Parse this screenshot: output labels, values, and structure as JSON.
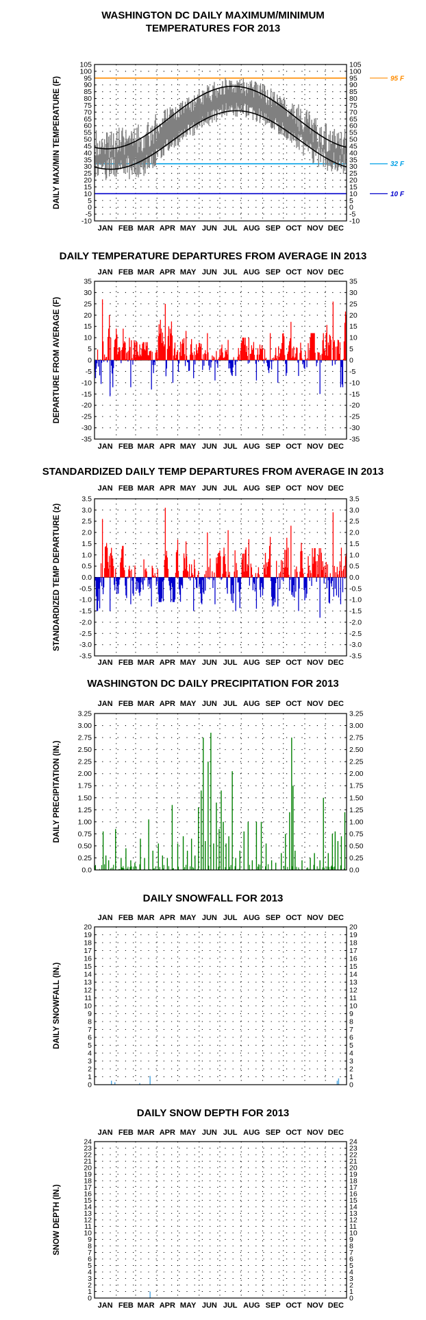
{
  "chart_data": [
    {
      "id": "temps",
      "type": "line",
      "title": "WASHINGTON DC DAILY MAXIMUM/MINIMUM",
      "title2": "TEMPERATURES FOR 2013",
      "ylabel": "DAILY MAX/MIN TEMPERATURE (F)",
      "months": [
        "JAN",
        "FEB",
        "MAR",
        "APR",
        "MAY",
        "JUN",
        "JUL",
        "AUG",
        "SEP",
        "OCT",
        "NOV",
        "DEC"
      ],
      "months_position": "bottom",
      "ylim": [
        -10,
        105
      ],
      "yticks": [
        -10,
        -5,
        0,
        5,
        10,
        15,
        20,
        25,
        30,
        35,
        40,
        45,
        50,
        55,
        60,
        65,
        70,
        75,
        80,
        85,
        90,
        95,
        100,
        105
      ],
      "grid": "dotted",
      "reference_lines": [
        {
          "value": 95,
          "label": "95 F",
          "color": "#ff8c00"
        },
        {
          "value": 32,
          "label": "32 F",
          "color": "#00a0e6"
        },
        {
          "value": 10,
          "label": "10 F",
          "color": "#0000cc"
        }
      ],
      "series": [
        {
          "kind": "normal_high",
          "color": "#000000",
          "min": 43,
          "max": 89,
          "peak_day": 200
        },
        {
          "kind": "normal_low",
          "color": "#000000",
          "min": 28,
          "max": 71,
          "peak_day": 205
        },
        {
          "kind": "observed_max_min",
          "color": "#808080",
          "monthly_max": [
            46,
            49,
            51,
            68,
            76,
            84,
            90,
            87,
            80,
            70,
            56,
            48
          ],
          "monthly_min": [
            28,
            29,
            32,
            46,
            56,
            66,
            73,
            70,
            62,
            51,
            37,
            31
          ]
        }
      ]
    },
    {
      "id": "departures",
      "type": "bar",
      "title": "DAILY TEMPERATURE DEPARTURES FROM AVERAGE IN 2013",
      "ylabel": "DEPARTURE FROM AVERAGE (F)",
      "months": [
        "JAN",
        "FEB",
        "MAR",
        "APR",
        "MAY",
        "JUN",
        "JUL",
        "AUG",
        "SEP",
        "OCT",
        "NOV",
        "DEC"
      ],
      "months_position": "top_and_bottom",
      "ylim": [
        -35,
        35
      ],
      "yticks": [
        -35,
        -30,
        -25,
        -20,
        -15,
        -10,
        -5,
        0,
        5,
        10,
        15,
        20,
        25,
        30,
        35
      ],
      "grid": "dotted",
      "positive_color": "#ff0000",
      "negative_color": "#0000cc",
      "monthly_mean_departure": [
        1.5,
        -1.0,
        -3.0,
        2.5,
        1.0,
        2.0,
        3.0,
        0.5,
        1.0,
        4.0,
        -2.5,
        1.5
      ],
      "monthly_peak_warm": [
        27,
        14,
        8,
        25,
        13,
        12,
        9,
        10,
        12,
        17,
        12,
        26
      ],
      "monthly_peak_cold": [
        -16,
        -12,
        -13,
        -10,
        -8,
        -9,
        -7,
        -9,
        -10,
        -7,
        -15,
        -12
      ]
    },
    {
      "id": "standardized",
      "type": "bar",
      "title": "STANDARDIZED DAILY TEMP DEPARTURES FROM AVERAGE IN 2013",
      "ylabel": "STANDARDIZED TEMP DEPARTURE (z)",
      "months": [
        "JAN",
        "FEB",
        "MAR",
        "APR",
        "MAY",
        "JUN",
        "JUL",
        "AUG",
        "SEP",
        "OCT",
        "NOV",
        "DEC"
      ],
      "months_position": "top_and_bottom",
      "ylim": [
        -3.5,
        3.5
      ],
      "yticks": [
        "-3.5",
        "-3.0",
        "-2.5",
        "-2.0",
        "-1.5",
        "-1.0",
        "-0.5",
        "0.0",
        "0.5",
        "1.0",
        "1.5",
        "2.0",
        "2.5",
        "3.0",
        "3.5"
      ],
      "grid": "dotted",
      "positive_color": "#ff0000",
      "negative_color": "#0000cc",
      "monthly_peak_warm": [
        2.6,
        1.4,
        0.8,
        3.1,
        1.6,
        2.0,
        2.1,
        1.7,
        1.8,
        2.3,
        1.3,
        2.9
      ],
      "monthly_peak_cold": [
        -1.5,
        -1.2,
        -1.3,
        -1.1,
        -1.5,
        -1.2,
        -1.5,
        -1.4,
        -1.3,
        -1.5,
        -1.8,
        -1.2
      ]
    },
    {
      "id": "precip",
      "type": "bar",
      "title": "WASHINGTON DC DAILY PRECIPITATION FOR 2013",
      "ylabel": "DAILY PRECIPITATION (IN.)",
      "months": [
        "JAN",
        "FEB",
        "MAR",
        "APR",
        "MAY",
        "JUN",
        "JUL",
        "AUG",
        "SEP",
        "OCT",
        "NOV",
        "DEC"
      ],
      "months_position": "top",
      "ylim": [
        0,
        3.25
      ],
      "yticks": [
        "0.0",
        "0.25",
        "0.50",
        "0.75",
        "1.00",
        "1.25",
        "1.50",
        "1.75",
        "2.00",
        "2.25",
        "2.50",
        "2.75",
        "3.00",
        "3.25"
      ],
      "grid": "dotted",
      "color": "#008000",
      "events": [
        {
          "day": 12,
          "value": 0.8
        },
        {
          "day": 16,
          "value": 0.3
        },
        {
          "day": 20,
          "value": 0.2
        },
        {
          "day": 30,
          "value": 0.85
        },
        {
          "day": 38,
          "value": 0.25
        },
        {
          "day": 45,
          "value": 0.45
        },
        {
          "day": 52,
          "value": 0.2
        },
        {
          "day": 58,
          "value": 0.15
        },
        {
          "day": 66,
          "value": 0.65
        },
        {
          "day": 72,
          "value": 0.25
        },
        {
          "day": 78,
          "value": 1.05
        },
        {
          "day": 84,
          "value": 0.4
        },
        {
          "day": 92,
          "value": 0.55
        },
        {
          "day": 98,
          "value": 0.3
        },
        {
          "day": 105,
          "value": 0.25
        },
        {
          "day": 112,
          "value": 1.35
        },
        {
          "day": 120,
          "value": 0.55
        },
        {
          "day": 128,
          "value": 0.7
        },
        {
          "day": 134,
          "value": 0.4
        },
        {
          "day": 140,
          "value": 0.65
        },
        {
          "day": 145,
          "value": 0.3
        },
        {
          "day": 150,
          "value": 1.3
        },
        {
          "day": 154,
          "value": 1.65
        },
        {
          "day": 157,
          "value": 2.75
        },
        {
          "day": 160,
          "value": 0.6
        },
        {
          "day": 164,
          "value": 2.25
        },
        {
          "day": 168,
          "value": 2.85
        },
        {
          "day": 172,
          "value": 0.55
        },
        {
          "day": 176,
          "value": 1.4
        },
        {
          "day": 180,
          "value": 0.85
        },
        {
          "day": 183,
          "value": 1.65
        },
        {
          "day": 186,
          "value": 1.0
        },
        {
          "day": 190,
          "value": 0.55
        },
        {
          "day": 194,
          "value": 0.7
        },
        {
          "day": 199,
          "value": 2.05
        },
        {
          "day": 204,
          "value": 0.25
        },
        {
          "day": 210,
          "value": 0.4
        },
        {
          "day": 216,
          "value": 0.8
        },
        {
          "day": 222,
          "value": 1.0
        },
        {
          "day": 228,
          "value": 0.2
        },
        {
          "day": 234,
          "value": 1.0
        },
        {
          "day": 241,
          "value": 1.0
        },
        {
          "day": 248,
          "value": 0.55
        },
        {
          "day": 256,
          "value": 0.2
        },
        {
          "day": 262,
          "value": 0.15
        },
        {
          "day": 270,
          "value": 0.35
        },
        {
          "day": 276,
          "value": 0.75
        },
        {
          "day": 282,
          "value": 1.2
        },
        {
          "day": 285,
          "value": 2.75
        },
        {
          "day": 287,
          "value": 1.75
        },
        {
          "day": 290,
          "value": 0.4
        },
        {
          "day": 300,
          "value": 0.2
        },
        {
          "day": 312,
          "value": 0.25
        },
        {
          "day": 318,
          "value": 0.35
        },
        {
          "day": 326,
          "value": 0.2
        },
        {
          "day": 331,
          "value": 1.5
        },
        {
          "day": 338,
          "value": 0.35
        },
        {
          "day": 344,
          "value": 0.75
        },
        {
          "day": 348,
          "value": 0.8
        },
        {
          "day": 352,
          "value": 0.6
        },
        {
          "day": 357,
          "value": 0.7
        },
        {
          "day": 362,
          "value": 1.2
        }
      ]
    },
    {
      "id": "snowfall",
      "type": "bar",
      "title": "DAILY SNOWFALL FOR 2013",
      "ylabel": "DAILY SNOWFALL (IN.)",
      "months": [
        "JAN",
        "FEB",
        "MAR",
        "APR",
        "MAY",
        "JUN",
        "JUL",
        "AUG",
        "SEP",
        "OCT",
        "NOV",
        "DEC"
      ],
      "months_position": "top",
      "ylim": [
        0,
        20
      ],
      "yticks": [
        0,
        1,
        2,
        3,
        4,
        5,
        6,
        7,
        8,
        9,
        10,
        11,
        12,
        13,
        14,
        15,
        16,
        17,
        18,
        19,
        20
      ],
      "grid": "dotted",
      "color": "#4aa3df",
      "events": [
        {
          "day": 24,
          "value": 0.5
        },
        {
          "day": 29,
          "value": 0.3
        },
        {
          "day": 65,
          "value": 0.2
        },
        {
          "day": 80,
          "value": 1.1
        },
        {
          "day": 351,
          "value": 0.5
        },
        {
          "day": 353,
          "value": 0.8
        }
      ]
    },
    {
      "id": "snowdepth",
      "type": "bar",
      "title": "DAILY SNOW DEPTH FOR 2013",
      "ylabel": "SNOW DEPTH (IN.)",
      "months": [
        "JAN",
        "FEB",
        "MAR",
        "APR",
        "MAY",
        "JUN",
        "JUL",
        "AUG",
        "SEP",
        "OCT",
        "NOV",
        "DEC"
      ],
      "months_position": "top_and_bottom",
      "ylim": [
        0,
        24
      ],
      "yticks": [
        0,
        1,
        2,
        3,
        4,
        5,
        6,
        7,
        8,
        9,
        10,
        11,
        12,
        13,
        14,
        15,
        16,
        17,
        18,
        19,
        20,
        21,
        22,
        23,
        24
      ],
      "grid": "dotted",
      "color": "#4aa3df",
      "events": [
        {
          "day": 80,
          "value": 1.0
        }
      ]
    }
  ]
}
